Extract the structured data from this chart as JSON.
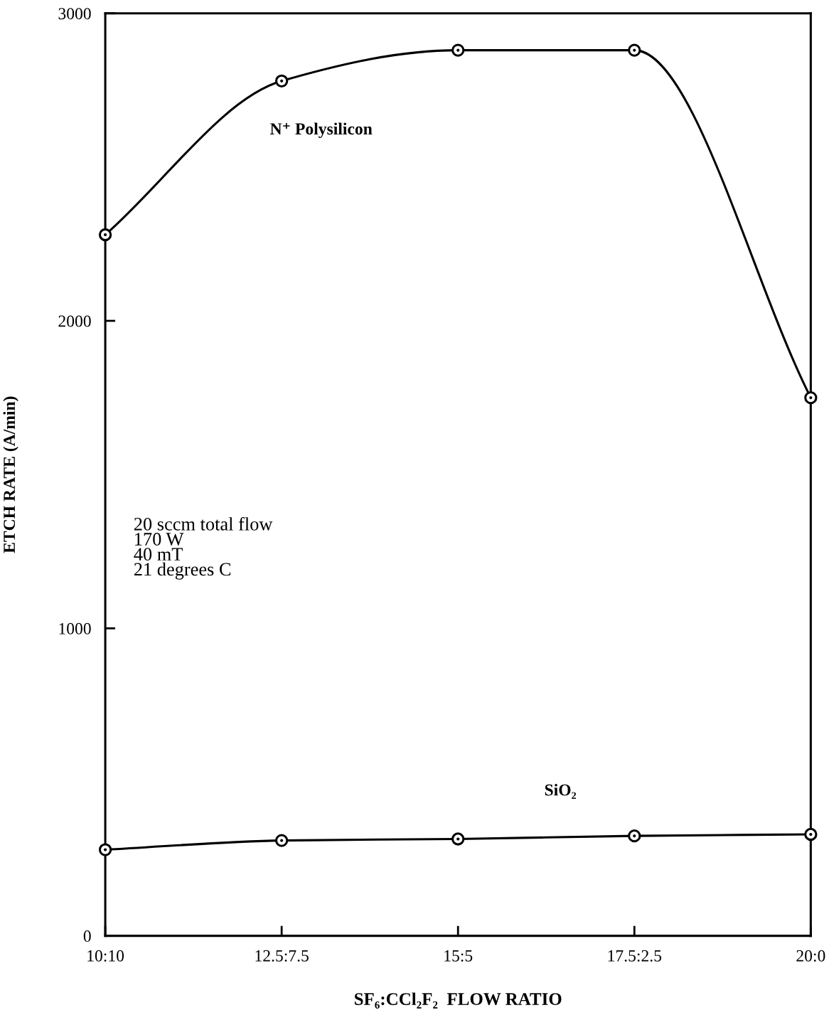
{
  "chart_data": {
    "type": "line",
    "xlabel": "SF₆:CCl₂F₂  FLOW RATIO",
    "ylabel": "ETCH RATE (A/min)",
    "categories": [
      "10:10",
      "12.5:7.5",
      "15:5",
      "17.5:2.5",
      "20:0"
    ],
    "series": [
      {
        "name": "N⁺ Polysilicon",
        "color": "#000000",
        "values": [
          2280,
          2780,
          2880,
          2880,
          1750
        ]
      },
      {
        "name": "SiO₂",
        "color": "#000000",
        "values": [
          280,
          310,
          315,
          325,
          330
        ]
      }
    ],
    "ylim": [
      0,
      3000
    ],
    "yticks": [
      0,
      1000,
      2000,
      3000
    ],
    "annotations": [
      "20 sccm total flow\n170 W\n40 mT\n21 degrees C"
    ],
    "marker": "circle",
    "line_style": "solid",
    "grid": false,
    "legend": false
  }
}
